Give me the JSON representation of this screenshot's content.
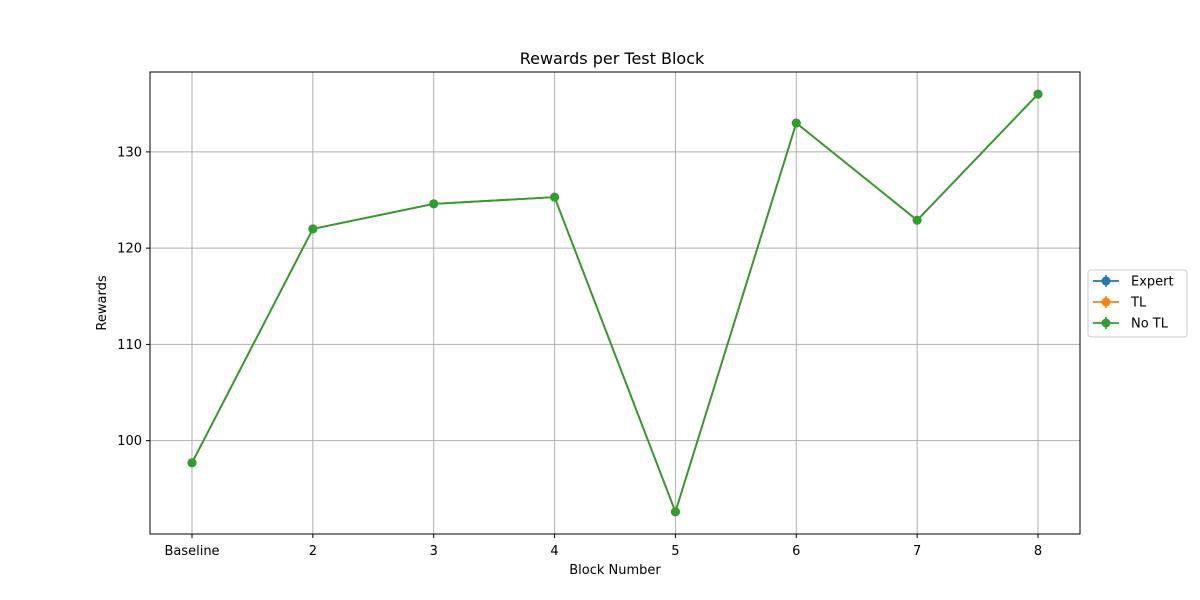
{
  "chart_data": {
    "type": "line",
    "title": "Rewards per Test Block",
    "xlabel": "Block Number",
    "ylabel": "Rewards",
    "categories": [
      "Baseline",
      "2",
      "3",
      "4",
      "5",
      "6",
      "7",
      "8"
    ],
    "ylim": [
      90.3,
      138.3
    ],
    "yticks": [
      100,
      110,
      120,
      130
    ],
    "grid": true,
    "legend_position": "right",
    "series": [
      {
        "name": "Expert",
        "color": "#1f77b4",
        "marker": "circle",
        "values": [
          97.7,
          122.0,
          124.6,
          125.3,
          92.6,
          133.0,
          122.9,
          136.0
        ]
      },
      {
        "name": "TL",
        "color": "#ff7f0e",
        "marker": "circle",
        "values": [
          97.7,
          122.0,
          124.6,
          125.3,
          92.6,
          133.0,
          122.9,
          136.0
        ]
      },
      {
        "name": "No TL",
        "color": "#2ca02c",
        "marker": "circle",
        "values": [
          97.7,
          122.0,
          124.6,
          125.3,
          92.6,
          133.0,
          122.9,
          136.0
        ]
      }
    ]
  }
}
